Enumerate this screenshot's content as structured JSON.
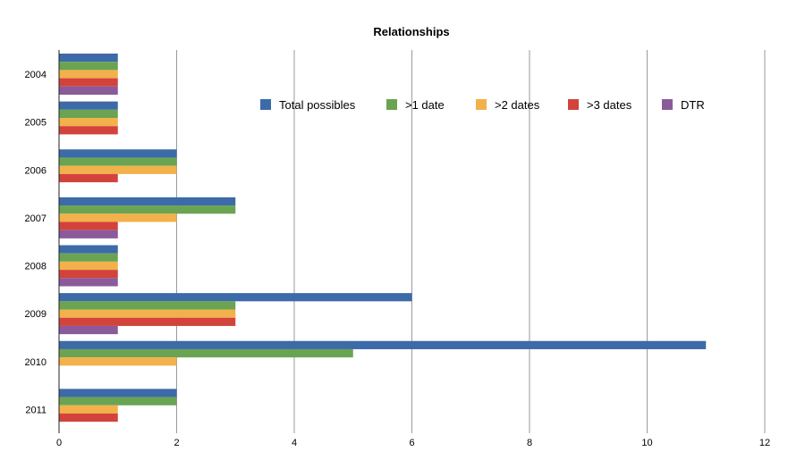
{
  "chart_data": {
    "type": "bar",
    "orientation": "horizontal",
    "title": "Relationships",
    "xlabel": "",
    "ylabel": "",
    "categories": [
      "2004",
      "2005",
      "2006",
      "2007",
      "2008",
      "2009",
      "2010",
      "2011"
    ],
    "xlim": [
      0,
      12
    ],
    "x_ticks": [
      "0",
      "2",
      "4",
      "6",
      "8",
      "10",
      "12"
    ],
    "grid": "vertical",
    "legend_position": "top-right",
    "series": [
      {
        "name": "Total possibles",
        "color": "#3d6aa8",
        "values": [
          1,
          1,
          2,
          3,
          1,
          6,
          11,
          2
        ]
      },
      {
        "name": ">1 date",
        "color": "#6aa452",
        "values": [
          1,
          1,
          2,
          3,
          1,
          3,
          5,
          2
        ]
      },
      {
        "name": ">2 dates",
        "color": "#f2b14b",
        "values": [
          1,
          1,
          2,
          2,
          1,
          3,
          2,
          1
        ]
      },
      {
        "name": ">3 dates",
        "color": "#d2433c",
        "values": [
          1,
          1,
          1,
          1,
          1,
          3,
          0,
          1
        ]
      },
      {
        "name": "DTR",
        "color": "#8a5a9a",
        "values": [
          1,
          0,
          0,
          1,
          1,
          1,
          0,
          0
        ]
      }
    ]
  }
}
